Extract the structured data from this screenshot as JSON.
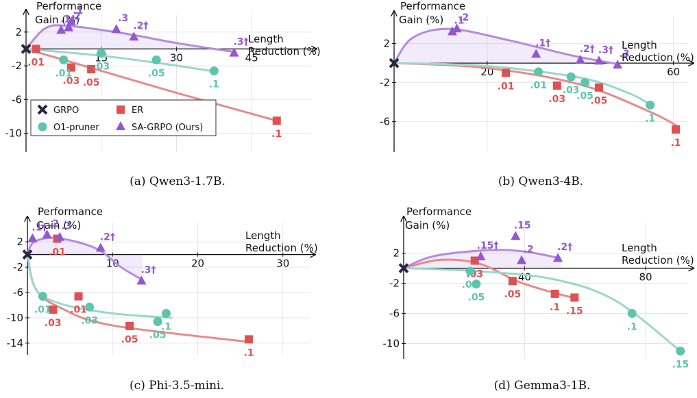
{
  "colors": {
    "grpo": "#2a2540",
    "er": "#e05050",
    "o1": "#5cc5ad",
    "sa": "#9457d1",
    "sa_fill": "#9457d1",
    "er_line": "#e88a8a",
    "o1_line": "#9ad8c8",
    "sa_line": "#b58ae0"
  },
  "legend": {
    "grpo": "GRPO",
    "er": "ER",
    "o1": "O1-pruner",
    "sa": "SA-GRPO (Ours)"
  },
  "chart_data": [
    {
      "type": "scatter",
      "caption": "(a) Qwen3-1.7B.",
      "ylabel_line1": "Performance",
      "ylabel_line2": "Gain (%)",
      "xlabel_line1": "Length",
      "xlabel_line2": "Reduction (%)",
      "xlim": [
        0,
        57
      ],
      "ylim": [
        -11,
        4.5
      ],
      "xticks": [
        15,
        30,
        45
      ],
      "yticks": [
        2,
        -2,
        -6,
        -10
      ],
      "series": [
        {
          "key": "grpo",
          "points": [
            {
              "x": 0,
              "y": 0,
              "label": ""
            }
          ]
        },
        {
          "key": "er",
          "points": [
            {
              "x": 2,
              "y": 0,
              "label": ".01"
            },
            {
              "x": 9,
              "y": -2.2,
              "label": ".03"
            },
            {
              "x": 13,
              "y": -2.4,
              "label": ".05"
            },
            {
              "x": 50,
              "y": -8.5,
              "label": ".1"
            }
          ]
        },
        {
          "key": "o1",
          "points": [
            {
              "x": 7.5,
              "y": -1.3,
              "label": ".01"
            },
            {
              "x": 15,
              "y": -0.5,
              "label": ".03"
            },
            {
              "x": 26,
              "y": -1.3,
              "label": ".05"
            },
            {
              "x": 37.5,
              "y": -2.6,
              "label": ".1"
            }
          ]
        },
        {
          "key": "sa",
          "points": [
            {
              "x": 7,
              "y": 2.2,
              "label": ".1†"
            },
            {
              "x": 8.5,
              "y": 2.5,
              "label": ".2"
            },
            {
              "x": 9,
              "y": 3.2,
              "label": ".1"
            },
            {
              "x": 18,
              "y": 2.3,
              "label": ".3"
            },
            {
              "x": 21.5,
              "y": 1.4,
              "label": ".2†"
            },
            {
              "x": 41.5,
              "y": -0.5,
              "label": ".3†"
            }
          ]
        }
      ]
    },
    {
      "type": "scatter",
      "caption": "(b) Qwen3-4B.",
      "ylabel_line1": "Performance",
      "ylabel_line2": "Gain (%)",
      "xlabel_line1": "Length",
      "xlabel_line2": "Reduction (%)",
      "xlim": [
        0,
        63
      ],
      "ylim": [
        -7.5,
        5.2
      ],
      "xticks": [
        20,
        60
      ],
      "yticks": [
        2,
        -2,
        -6
      ],
      "series": [
        {
          "key": "grpo",
          "points": [
            {
              "x": 0,
              "y": 0,
              "label": ""
            }
          ]
        },
        {
          "key": "er",
          "points": [
            {
              "x": 24,
              "y": -1.0,
              "label": ".01"
            },
            {
              "x": 35,
              "y": -2.3,
              "label": ".03"
            },
            {
              "x": 44,
              "y": -2.5,
              "label": ".05"
            },
            {
              "x": 60.5,
              "y": -6.8,
              "label": ".1"
            }
          ]
        },
        {
          "key": "o1",
          "points": [
            {
              "x": 31,
              "y": -0.9,
              "label": ".01"
            },
            {
              "x": 38,
              "y": -1.4,
              "label": ".03"
            },
            {
              "x": 41,
              "y": -2.0,
              "label": ".05"
            },
            {
              "x": 55,
              "y": -4.3,
              "label": ".1"
            }
          ]
        },
        {
          "key": "sa",
          "points": [
            {
              "x": 12.5,
              "y": 3.2,
              "label": ".1"
            },
            {
              "x": 13.5,
              "y": 3.5,
              "label": ".2"
            },
            {
              "x": 30.5,
              "y": 0.9,
              "label": ".1†"
            },
            {
              "x": 40,
              "y": 0.3,
              "label": ".2†"
            },
            {
              "x": 44,
              "y": 0.2,
              "label": ".3†"
            },
            {
              "x": 48,
              "y": -0.2,
              "label": ".3"
            }
          ]
        }
      ]
    },
    {
      "type": "scatter",
      "caption": "(c) Phi-3.5-mini.",
      "ylabel_line1": "Performance",
      "ylabel_line2": "Gain (%)",
      "xlabel_line1": "Length",
      "xlabel_line2": "Reduction (%)",
      "xlim": [
        0,
        33
      ],
      "ylim": [
        -15.2,
        5.8
      ],
      "xticks": [
        10,
        20,
        30
      ],
      "yticks": [
        2,
        -2,
        -6,
        -10,
        -14
      ],
      "series": [
        {
          "key": "grpo",
          "points": [
            {
              "x": 0,
              "y": 0,
              "label": ""
            }
          ]
        },
        {
          "key": "er",
          "points": [
            {
              "x": 3.5,
              "y": 2.5,
              "label": ".01"
            },
            {
              "x": 3,
              "y": -8.7,
              "label": ".03"
            },
            {
              "x": 6,
              "y": -6.6,
              "label": ".01"
            },
            {
              "x": 12,
              "y": -11.3,
              "label": ".05"
            },
            {
              "x": 26,
              "y": -13.4,
              "label": ".1"
            }
          ]
        },
        {
          "key": "o1",
          "points": [
            {
              "x": 1.8,
              "y": -6.6,
              "label": ".01"
            },
            {
              "x": 7.3,
              "y": -8.3,
              "label": ".03"
            },
            {
              "x": 15.3,
              "y": -10.6,
              "label": ".05"
            },
            {
              "x": 16.3,
              "y": -9.3,
              "label": ".1"
            }
          ]
        },
        {
          "key": "sa",
          "points": [
            {
              "x": 0.6,
              "y": 2.5,
              "label": ".1†"
            },
            {
              "x": 2.3,
              "y": 3.1,
              "label": ".2"
            },
            {
              "x": 3.8,
              "y": 2.7,
              "label": ".3"
            },
            {
              "x": 8.6,
              "y": 1.0,
              "label": ".2†"
            },
            {
              "x": 13.4,
              "y": -4.2,
              "label": ".3†"
            }
          ]
        }
      ]
    },
    {
      "type": "scatter",
      "caption": "(d) Gemma3-1B.",
      "ylabel_line1": "Performance",
      "ylabel_line2": "Gain (%)",
      "xlabel_line1": "Length",
      "xlabel_line2": "Reduction (%)",
      "xlim": [
        0,
        92
      ],
      "ylim": [
        -11.5,
        5.5
      ],
      "xticks": [
        40,
        80
      ],
      "yticks": [
        2,
        -2,
        -6,
        -10
      ],
      "series": [
        {
          "key": "grpo",
          "points": [
            {
              "x": 0,
              "y": 0,
              "label": ""
            }
          ]
        },
        {
          "key": "er",
          "points": [
            {
              "x": 23.5,
              "y": 1.0,
              "label": ".03"
            },
            {
              "x": 36,
              "y": -1.7,
              "label": ".05"
            },
            {
              "x": 50,
              "y": -3.4,
              "label": ".1"
            },
            {
              "x": 56.5,
              "y": -3.9,
              "label": ".15"
            }
          ]
        },
        {
          "key": "o1",
          "points": [
            {
              "x": 22,
              "y": -0.4,
              "label": ".03"
            },
            {
              "x": 24,
              "y": -2.1,
              "label": ".05"
            },
            {
              "x": 75.5,
              "y": -6.0,
              "label": ".1"
            },
            {
              "x": 91.5,
              "y": -11.0,
              "label": ".15"
            }
          ]
        },
        {
          "key": "sa",
          "points": [
            {
              "x": 25.5,
              "y": 1.5,
              "label": ".15†"
            },
            {
              "x": 37,
              "y": 4.2,
              "label": ".15"
            },
            {
              "x": 39,
              "y": 1.0,
              "label": ".2"
            },
            {
              "x": 51,
              "y": 1.3,
              "label": ".2†"
            }
          ]
        }
      ]
    }
  ]
}
